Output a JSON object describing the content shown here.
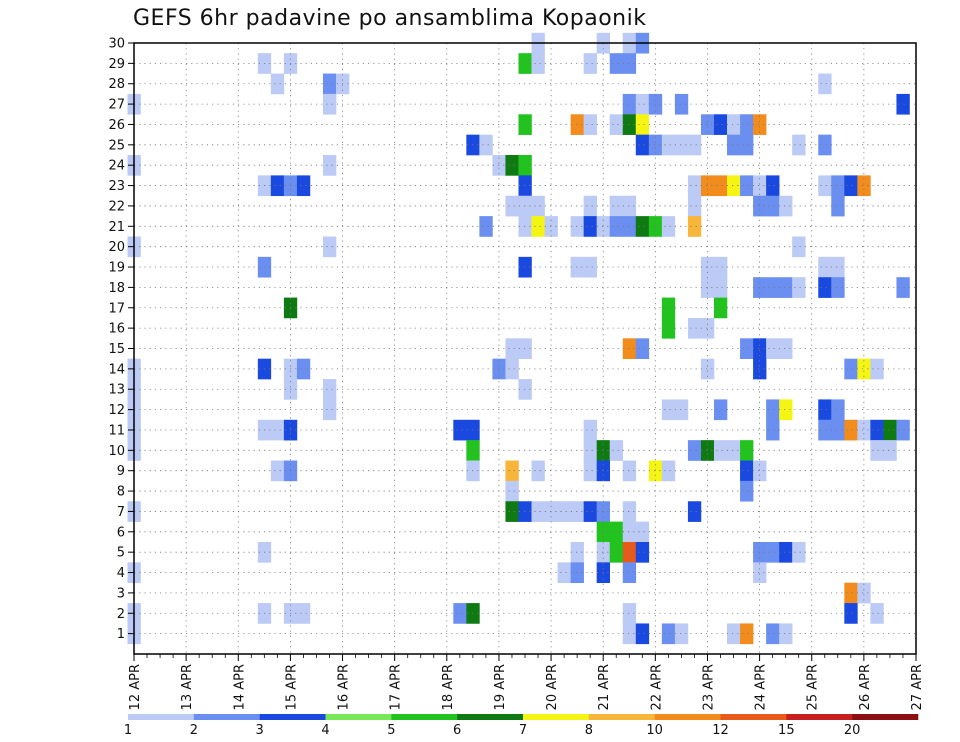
{
  "chart_data": {
    "type": "heatmap",
    "title": "GEFS 6hr padavine po ansamblima Kopaonik",
    "y_ticks": [
      "1",
      "2",
      "3",
      "4",
      "5",
      "6",
      "7",
      "8",
      "9",
      "10",
      "11",
      "12",
      "13",
      "14",
      "15",
      "16",
      "17",
      "18",
      "19",
      "20",
      "21",
      "22",
      "23",
      "24",
      "25",
      "26",
      "27",
      "28",
      "29",
      "30"
    ],
    "x_ticks": [
      "12 APR",
      "13 APR",
      "14 APR",
      "15 APR",
      "16 APR",
      "17 APR",
      "18 APR",
      "19 APR",
      "20 APR",
      "21 APR",
      "22 APR",
      "23 APR",
      "24 APR",
      "25 APR",
      "26 APR",
      "27 APR"
    ],
    "x_range": [
      "12 APR",
      "27 APR"
    ],
    "x_step_hours": 6,
    "y_range": [
      0,
      30
    ],
    "grid": true,
    "colorbar": {
      "labels": [
        "1",
        "2",
        "3",
        "4",
        "5",
        "6",
        "7",
        "8",
        "10",
        "12",
        "15",
        "20"
      ],
      "colors": [
        "#bccbf5",
        "#6b8ff0",
        "#1a49e0",
        "#78e858",
        "#22c31e",
        "#0f7a12",
        "#f5f514",
        "#f7b53a",
        "#f28c1c",
        "#e85a1a",
        "#c8201e",
        "#8c0f12"
      ]
    },
    "cells": [
      [
        30,
        19.75,
        1
      ],
      [
        30,
        21.0,
        1
      ],
      [
        30,
        21.5,
        1
      ],
      [
        30,
        21.75,
        2
      ],
      [
        29,
        14.5,
        1
      ],
      [
        29,
        15.0,
        1
      ],
      [
        29,
        19.5,
        5
      ],
      [
        29,
        19.75,
        1
      ],
      [
        29,
        20.75,
        1
      ],
      [
        29,
        21.25,
        2
      ],
      [
        29,
        21.5,
        2
      ],
      [
        28,
        14.75,
        1
      ],
      [
        28,
        15.75,
        2
      ],
      [
        28,
        16.0,
        1
      ],
      [
        28,
        25.25,
        1
      ],
      [
        27,
        12.0,
        1
      ],
      [
        27,
        15.75,
        1
      ],
      [
        27,
        21.5,
        2
      ],
      [
        27,
        21.75,
        1
      ],
      [
        27,
        22.0,
        2
      ],
      [
        27,
        22.5,
        2
      ],
      [
        27,
        26.75,
        3
      ],
      [
        26,
        19.5,
        5
      ],
      [
        26,
        20.5,
        9
      ],
      [
        26,
        20.75,
        1
      ],
      [
        26,
        21.25,
        1
      ],
      [
        26,
        21.5,
        6
      ],
      [
        26,
        21.75,
        7
      ],
      [
        26,
        23.0,
        2
      ],
      [
        26,
        23.25,
        3
      ],
      [
        26,
        23.5,
        1
      ],
      [
        26,
        23.75,
        2
      ],
      [
        26,
        24.0,
        9
      ],
      [
        25,
        18.5,
        3
      ],
      [
        25,
        18.75,
        1
      ],
      [
        25,
        21.75,
        3
      ],
      [
        25,
        22.0,
        2
      ],
      [
        25,
        22.25,
        1
      ],
      [
        25,
        22.5,
        1
      ],
      [
        25,
        22.75,
        1
      ],
      [
        25,
        23.5,
        2
      ],
      [
        25,
        23.75,
        2
      ],
      [
        25,
        24.75,
        1
      ],
      [
        25,
        25.25,
        2
      ],
      [
        24,
        12.0,
        1
      ],
      [
        24,
        15.75,
        1
      ],
      [
        24,
        19.0,
        1
      ],
      [
        24,
        19.25,
        6
      ],
      [
        24,
        19.5,
        5
      ],
      [
        23,
        14.5,
        1
      ],
      [
        23,
        14.75,
        3
      ],
      [
        23,
        15.0,
        2
      ],
      [
        23,
        15.25,
        3
      ],
      [
        23,
        19.5,
        3
      ],
      [
        23,
        22.75,
        1
      ],
      [
        23,
        23.0,
        9
      ],
      [
        23,
        23.25,
        9
      ],
      [
        23,
        23.5,
        7
      ],
      [
        23,
        23.75,
        2
      ],
      [
        23,
        24.0,
        1
      ],
      [
        23,
        24.25,
        3
      ],
      [
        23,
        25.25,
        1
      ],
      [
        23,
        25.5,
        2
      ],
      [
        23,
        25.75,
        3
      ],
      [
        23,
        26.0,
        9
      ],
      [
        22,
        19.25,
        1
      ],
      [
        22,
        19.5,
        1
      ],
      [
        22,
        19.75,
        1
      ],
      [
        22,
        20.75,
        1
      ],
      [
        22,
        21.25,
        1
      ],
      [
        22,
        21.5,
        1
      ],
      [
        22,
        22.75,
        1
      ],
      [
        22,
        24.0,
        2
      ],
      [
        22,
        24.25,
        2
      ],
      [
        22,
        24.5,
        1
      ],
      [
        22,
        25.5,
        2
      ],
      [
        21,
        18.75,
        2
      ],
      [
        21,
        19.5,
        1
      ],
      [
        21,
        19.75,
        7
      ],
      [
        21,
        20.0,
        1
      ],
      [
        21,
        20.5,
        1
      ],
      [
        21,
        20.75,
        3
      ],
      [
        21,
        21.0,
        1
      ],
      [
        21,
        21.25,
        2
      ],
      [
        21,
        21.5,
        2
      ],
      [
        21,
        21.75,
        6
      ],
      [
        21,
        22.0,
        5
      ],
      [
        21,
        22.25,
        1
      ],
      [
        21,
        22.75,
        8
      ],
      [
        20,
        12.0,
        1
      ],
      [
        20,
        15.75,
        1
      ],
      [
        20,
        24.75,
        1
      ],
      [
        19,
        14.5,
        2
      ],
      [
        19,
        19.5,
        3
      ],
      [
        19,
        20.5,
        1
      ],
      [
        19,
        20.75,
        1
      ],
      [
        19,
        23.0,
        1
      ],
      [
        19,
        23.25,
        1
      ],
      [
        19,
        25.25,
        1
      ],
      [
        19,
        25.5,
        1
      ],
      [
        18,
        23.0,
        1
      ],
      [
        18,
        23.25,
        1
      ],
      [
        18,
        24.0,
        2
      ],
      [
        18,
        24.25,
        2
      ],
      [
        18,
        24.5,
        2
      ],
      [
        18,
        24.75,
        1
      ],
      [
        18,
        25.25,
        3
      ],
      [
        18,
        25.5,
        2
      ],
      [
        18,
        26.75,
        2
      ],
      [
        17,
        15.0,
        6
      ],
      [
        17,
        22.25,
        5
      ],
      [
        17,
        23.25,
        5
      ],
      [
        16,
        22.25,
        5
      ],
      [
        16,
        22.75,
        1
      ],
      [
        16,
        23.0,
        1
      ],
      [
        15,
        19.25,
        1
      ],
      [
        15,
        19.5,
        1
      ],
      [
        15,
        21.5,
        9
      ],
      [
        15,
        21.75,
        2
      ],
      [
        15,
        23.75,
        2
      ],
      [
        15,
        24.0,
        3
      ],
      [
        15,
        24.25,
        1
      ],
      [
        15,
        24.5,
        1
      ],
      [
        14,
        12.0,
        1
      ],
      [
        14,
        14.5,
        3
      ],
      [
        14,
        15.0,
        1
      ],
      [
        14,
        15.25,
        2
      ],
      [
        14,
        19.0,
        2
      ],
      [
        14,
        19.25,
        1
      ],
      [
        14,
        23.0,
        1
      ],
      [
        14,
        24.0,
        3
      ],
      [
        14,
        25.75,
        2
      ],
      [
        14,
        26.0,
        7
      ],
      [
        14,
        26.25,
        1
      ],
      [
        13,
        12.0,
        1
      ],
      [
        13,
        15.0,
        1
      ],
      [
        13,
        15.75,
        1
      ],
      [
        13,
        19.5,
        1
      ],
      [
        12,
        12.0,
        1
      ],
      [
        12,
        15.75,
        1
      ],
      [
        12,
        22.25,
        1
      ],
      [
        12,
        22.5,
        1
      ],
      [
        12,
        23.25,
        2
      ],
      [
        12,
        24.25,
        2
      ],
      [
        12,
        24.5,
        7
      ],
      [
        12,
        25.25,
        3
      ],
      [
        12,
        25.5,
        2
      ],
      [
        11,
        12.0,
        1
      ],
      [
        11,
        14.5,
        1
      ],
      [
        11,
        14.75,
        1
      ],
      [
        11,
        15.0,
        3
      ],
      [
        11,
        18.25,
        3
      ],
      [
        11,
        18.5,
        3
      ],
      [
        11,
        20.75,
        1
      ],
      [
        11,
        24.25,
        2
      ],
      [
        11,
        25.25,
        2
      ],
      [
        11,
        25.5,
        2
      ],
      [
        11,
        25.75,
        9
      ],
      [
        11,
        26.0,
        1
      ],
      [
        11,
        26.25,
        3
      ],
      [
        11,
        26.5,
        6
      ],
      [
        11,
        26.75,
        2
      ],
      [
        10,
        12.0,
        1
      ],
      [
        10,
        18.5,
        5
      ],
      [
        10,
        20.75,
        1
      ],
      [
        10,
        21.0,
        6
      ],
      [
        10,
        21.25,
        1
      ],
      [
        10,
        22.75,
        2
      ],
      [
        10,
        23.0,
        6
      ],
      [
        10,
        23.25,
        1
      ],
      [
        10,
        23.5,
        1
      ],
      [
        10,
        23.75,
        5
      ],
      [
        10,
        26.25,
        1
      ],
      [
        10,
        26.5,
        1
      ],
      [
        9,
        14.75,
        1
      ],
      [
        9,
        15.0,
        2
      ],
      [
        9,
        18.5,
        1
      ],
      [
        9,
        19.25,
        8
      ],
      [
        9,
        19.75,
        1
      ],
      [
        9,
        20.75,
        1
      ],
      [
        9,
        21.0,
        3
      ],
      [
        9,
        21.5,
        1
      ],
      [
        9,
        22.0,
        7
      ],
      [
        9,
        22.25,
        1
      ],
      [
        9,
        23.75,
        3
      ],
      [
        9,
        24.0,
        1
      ],
      [
        8,
        19.25,
        1
      ],
      [
        8,
        23.75,
        2
      ],
      [
        7,
        12.0,
        1
      ],
      [
        7,
        19.25,
        6
      ],
      [
        7,
        19.5,
        3
      ],
      [
        7,
        19.75,
        1
      ],
      [
        7,
        20.0,
        1
      ],
      [
        7,
        20.25,
        1
      ],
      [
        7,
        20.5,
        1
      ],
      [
        7,
        20.75,
        3
      ],
      [
        7,
        21.0,
        2
      ],
      [
        7,
        21.5,
        1
      ],
      [
        7,
        22.75,
        3
      ],
      [
        6,
        21.0,
        5
      ],
      [
        6,
        21.25,
        5
      ],
      [
        6,
        21.5,
        1
      ],
      [
        6,
        21.75,
        1
      ],
      [
        5,
        14.5,
        1
      ],
      [
        5,
        20.5,
        1
      ],
      [
        5,
        21.0,
        1
      ],
      [
        5,
        21.25,
        5
      ],
      [
        5,
        21.5,
        10
      ],
      [
        5,
        21.75,
        3
      ],
      [
        5,
        24.0,
        2
      ],
      [
        5,
        24.25,
        2
      ],
      [
        5,
        24.5,
        3
      ],
      [
        5,
        24.75,
        1
      ],
      [
        4,
        12.0,
        1
      ],
      [
        4,
        20.25,
        1
      ],
      [
        4,
        20.5,
        2
      ],
      [
        4,
        21.0,
        3
      ],
      [
        4,
        21.5,
        2
      ],
      [
        4,
        24.0,
        1
      ],
      [
        3,
        25.75,
        9
      ],
      [
        3,
        26.0,
        1
      ],
      [
        2,
        12.0,
        1
      ],
      [
        2,
        14.5,
        1
      ],
      [
        2,
        15.0,
        1
      ],
      [
        2,
        15.25,
        1
      ],
      [
        2,
        18.25,
        2
      ],
      [
        2,
        18.5,
        6
      ],
      [
        2,
        21.5,
        1
      ],
      [
        2,
        25.75,
        3
      ],
      [
        2,
        26.25,
        1
      ],
      [
        1,
        12.0,
        1
      ],
      [
        1,
        21.5,
        1
      ],
      [
        1,
        21.75,
        3
      ],
      [
        1,
        22.25,
        2
      ],
      [
        1,
        22.5,
        1
      ],
      [
        1,
        23.5,
        1
      ],
      [
        1,
        23.75,
        9
      ],
      [
        1,
        24.25,
        2
      ],
      [
        1,
        24.5,
        1
      ]
    ]
  }
}
